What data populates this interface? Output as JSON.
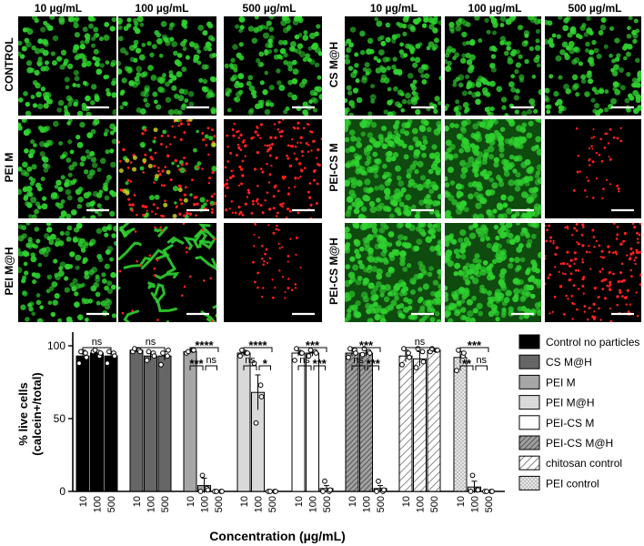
{
  "micrographs": {
    "left_panel": {
      "column_headers": [
        "10 µg/mL",
        "100 µg/mL",
        "500 µg/mL"
      ],
      "row_labels": [
        "CONTROL",
        "PEI M",
        "PEI M@H"
      ],
      "cells": [
        [
          "live",
          "live",
          "live"
        ],
        [
          "live",
          "mixed",
          "dead"
        ],
        [
          "live",
          "strands",
          "dead-sparse"
        ]
      ]
    },
    "right_panel": {
      "column_headers": [
        "10 µg/mL",
        "100 µg/mL",
        "500 µg/mL"
      ],
      "row_labels": [
        "CS M@H",
        "PEI-CS M",
        "PEI-CS M@H"
      ],
      "cells": [
        [
          "live",
          "live",
          "live"
        ],
        [
          "live-dense",
          "live-dense",
          "dead-sparse"
        ],
        [
          "live-dense",
          "live-dense",
          "dead"
        ]
      ]
    },
    "colors": {
      "live": "#2fd22f",
      "dead": "#ff2020",
      "background": "#000000",
      "scale_bar": "#ffffff"
    }
  },
  "chart_data": {
    "type": "bar",
    "ylabel": "% live cells\n(calcein+/total)",
    "xlabel": "Concentration (µg/mL)",
    "ylim": [
      0,
      100
    ],
    "yticks": [
      0,
      50,
      100
    ],
    "categories": [
      "10",
      "100",
      "500"
    ],
    "legend_position": "right",
    "series": [
      {
        "name": "Control no particles",
        "fill": "#000000",
        "pattern": "solid",
        "values": [
          93,
          95,
          93
        ],
        "errors": [
          4,
          2,
          3
        ],
        "points": [
          [
            88,
            95,
            96,
            92
          ],
          [
            96,
            93,
            97,
            95
          ],
          [
            88,
            95,
            96,
            93
          ]
        ],
        "significance": [
          {
            "from": 0,
            "to": 2,
            "label": "ns"
          }
        ]
      },
      {
        "name": "CS M@H",
        "fill": "#666666",
        "pattern": "solid",
        "values": [
          97,
          93,
          93
        ],
        "errors": [
          1,
          3,
          3
        ],
        "points": [
          [
            96,
            97,
            98,
            96
          ],
          [
            90,
            95,
            96,
            93
          ],
          [
            87,
            93,
            95,
            97
          ]
        ],
        "significance": [
          {
            "from": 0,
            "to": 2,
            "label": "ns"
          }
        ]
      },
      {
        "name": "PEI M",
        "fill": "#a6a6a6",
        "pattern": "solid",
        "values": [
          96,
          4,
          0
        ],
        "errors": [
          1,
          5,
          0
        ],
        "points": [
          [
            95,
            97,
            96,
            97
          ],
          [
            0,
            2,
            11,
            1
          ],
          [
            0,
            0,
            0,
            0
          ]
        ],
        "significance": [
          {
            "from": 0,
            "to": 2,
            "label": "****"
          },
          {
            "from": 0,
            "to": 1,
            "label": "***"
          },
          {
            "from": 1,
            "to": 2,
            "label": "ns"
          }
        ]
      },
      {
        "name": "PEI M@H",
        "fill": "#d9d9d9",
        "pattern": "solid",
        "values": [
          95,
          68,
          0
        ],
        "errors": [
          2,
          12,
          0
        ],
        "points": [
          [
            93,
            95,
            97,
            95
          ],
          [
            88,
            73,
            47,
            65
          ],
          [
            0,
            0,
            0,
            0
          ]
        ],
        "significance": [
          {
            "from": 0,
            "to": 2,
            "label": "****"
          },
          {
            "from": 0,
            "to": 1,
            "label": "ns"
          },
          {
            "from": 1,
            "to": 2,
            "label": "*"
          }
        ]
      },
      {
        "name": "PEI-CS M",
        "fill": "#ffffff",
        "pattern": "solid",
        "values": [
          95,
          95,
          2
        ],
        "errors": [
          2,
          2,
          2
        ],
        "points": [
          [
            90,
            95,
            98,
            95
          ],
          [
            93,
            96,
            97,
            95
          ],
          [
            0,
            0,
            7,
            1
          ]
        ],
        "significance": [
          {
            "from": 0,
            "to": 2,
            "label": "***"
          },
          {
            "from": 0,
            "to": 1,
            "label": "ns"
          },
          {
            "from": 1,
            "to": 2,
            "label": "***"
          }
        ]
      },
      {
        "name": "PEI-CS M@H",
        "fill": "#9a9a9a",
        "pattern": "dense-hatch",
        "values": [
          95,
          95,
          2
        ],
        "errors": [
          2,
          2,
          2
        ],
        "points": [
          [
            92,
            97,
            98,
            95
          ],
          [
            94,
            96,
            98,
            95
          ],
          [
            0,
            0,
            7,
            1
          ]
        ],
        "significance": [
          {
            "from": 0,
            "to": 2,
            "label": "***"
          },
          {
            "from": 0,
            "to": 1,
            "label": "ns"
          },
          {
            "from": 1,
            "to": 2,
            "label": "***"
          }
        ]
      },
      {
        "name": "chitosan control",
        "fill": "#ffffff",
        "pattern": "sparse-hatch",
        "values": [
          93,
          91,
          97
        ],
        "errors": [
          4,
          5,
          1
        ],
        "points": [
          [
            87,
            95,
            98,
            92
          ],
          [
            85,
            96,
            98,
            89
          ],
          [
            96,
            97,
            98,
            97
          ]
        ],
        "significance": [
          {
            "from": 0,
            "to": 2,
            "label": "ns"
          }
        ]
      },
      {
        "name": "PEI control",
        "fill": "#e8e8e8",
        "pattern": "dots",
        "values": [
          92,
          3,
          0
        ],
        "errors": [
          4,
          4,
          0
        ],
        "points": [
          [
            83,
            93,
            97,
            95
          ],
          [
            0,
            1,
            11,
            1
          ],
          [
            0,
            0,
            0,
            0
          ]
        ],
        "significance": [
          {
            "from": 0,
            "to": 2,
            "label": "***"
          },
          {
            "from": 0,
            "to": 1,
            "label": "**"
          },
          {
            "from": 1,
            "to": 2,
            "label": "ns"
          }
        ]
      }
    ]
  }
}
